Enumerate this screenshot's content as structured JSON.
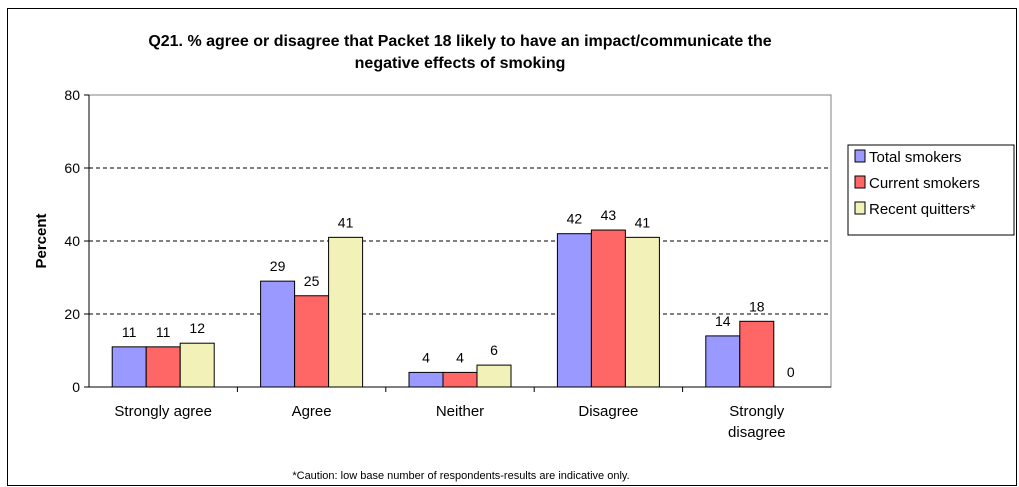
{
  "colors": {
    "total_smokers": "#9999ff",
    "current_smokers": "#ff6666",
    "recent_quitters": "#f2f2b8",
    "plot_area": "#ffffff",
    "gridline": "#000000"
  },
  "chart_data": {
    "type": "bar",
    "title_lines": [
      "Q21. % agree or disagree that Packet 18 likely to have an impact/communicate the",
      "negative effects of smoking"
    ],
    "xlabel": "",
    "ylabel": "Percent",
    "ylim": [
      0,
      80
    ],
    "yticks": [
      "0",
      "20",
      "40",
      "60",
      "80"
    ],
    "grid": "dashed horizontal",
    "legend_position": "right",
    "categories": [
      [
        "Strongly agree"
      ],
      [
        "Agree"
      ],
      [
        "Neither"
      ],
      [
        "Disagree"
      ],
      [
        "Strongly",
        "disagree"
      ]
    ],
    "series": [
      {
        "name": "Total smokers",
        "values": [
          11,
          29,
          4,
          42,
          14
        ]
      },
      {
        "name": "Current smokers",
        "values": [
          11,
          25,
          4,
          43,
          18
        ]
      },
      {
        "name": "Recent quitters*",
        "values": [
          12,
          41,
          6,
          41,
          0
        ]
      }
    ],
    "footnote": "*Caution: low base number of respondents-results are indicative only."
  }
}
